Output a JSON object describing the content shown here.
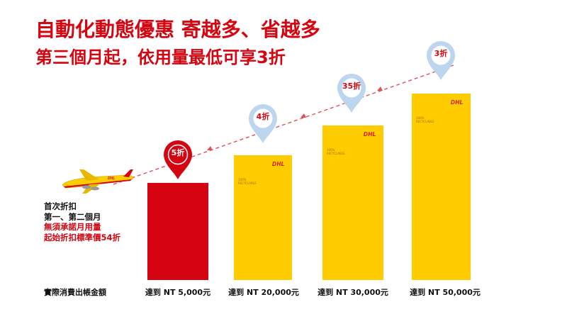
{
  "headline": {
    "line1": "自動化動態優惠 寄越多、省越多",
    "line2": "第三個月起，依用量最低可享3折"
  },
  "note": {
    "line1": "首次折扣",
    "line2": "第一、第二個月",
    "line3": "無須承諾月用量",
    "line4": "起始折扣標準價54折"
  },
  "base_label": "實際消費出帳金額",
  "tiers": [
    {
      "pin": "5折",
      "label": "達到 NT 5,000元"
    },
    {
      "pin": "4折",
      "label": "達到 NT 20,000元"
    },
    {
      "pin": "35折",
      "label": "達到 NT 30,000元"
    },
    {
      "pin": "3折",
      "label": "達到 NT 50,000元"
    }
  ],
  "colors": {
    "dhl_red": "#d40511",
    "dhl_yellow": "#ffcc00",
    "pin_blue": "#bcd6ef"
  },
  "icons": {
    "plane": "airplane-icon",
    "box": "package-box-icon",
    "pin": "map-pin-icon"
  }
}
